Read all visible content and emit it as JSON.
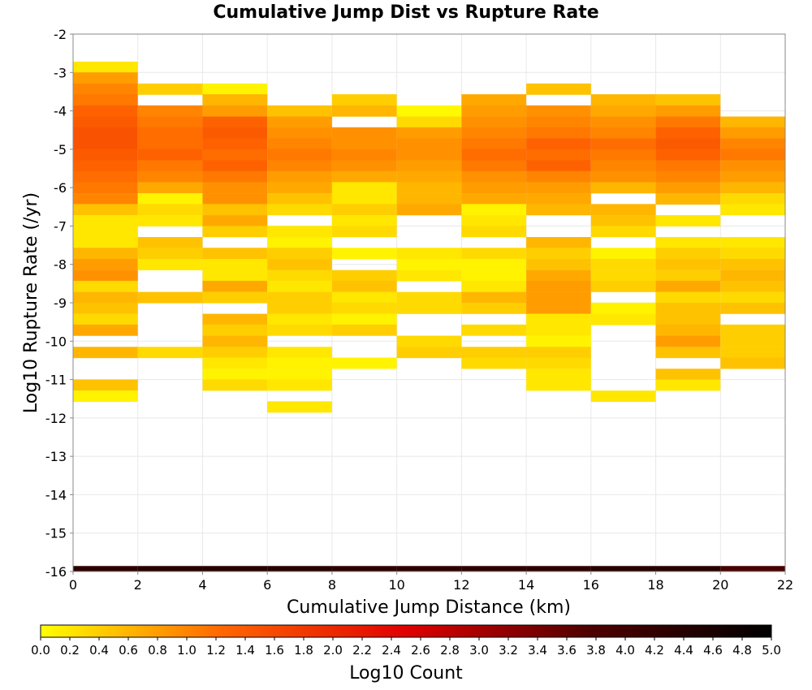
{
  "chart_data": {
    "type": "heatmap",
    "title": "Cumulative Jump Dist vs Rupture Rate",
    "xlabel": "Cumulative Jump Distance (km)",
    "ylabel": "Log10 Rupture Rate (/yr)",
    "xlim": [
      0,
      22
    ],
    "ylim": [
      -16,
      -2
    ],
    "x_ticks": [
      "0",
      "2",
      "4",
      "6",
      "8",
      "10",
      "12",
      "14",
      "16",
      "18",
      "20",
      "22"
    ],
    "y_ticks": [
      "-2",
      "-3",
      "-4",
      "-5",
      "-6",
      "-7",
      "-8",
      "-9",
      "-10",
      "-11",
      "-12",
      "-13",
      "-14",
      "-15",
      "-16"
    ],
    "grid": true,
    "x_bin_width": 2,
    "y_bin_height": 0.2857,
    "colorbar": {
      "label": "Log10 Count",
      "min": 0.0,
      "max": 5.0,
      "ticks": [
        "0.0",
        "0.2",
        "0.4",
        "0.6",
        "0.8",
        "1.0",
        "1.2",
        "1.4",
        "1.6",
        "1.8",
        "2.0",
        "2.2",
        "2.4",
        "2.6",
        "2.8",
        "3.0",
        "3.2",
        "3.4",
        "3.6",
        "3.8",
        "4.0",
        "4.2",
        "4.4",
        "4.6",
        "4.8",
        "5.0"
      ],
      "colors": [
        "#ffff00",
        "#ff6600",
        "#e00000",
        "#500000",
        "#000000"
      ]
    },
    "columns": [
      {
        "x": 1,
        "cells": [
          [
            -2.86,
            0.2
          ],
          [
            -3.14,
            0.8
          ],
          [
            -3.43,
            1.0
          ],
          [
            -3.71,
            1.1
          ],
          [
            -4.0,
            1.3
          ],
          [
            -4.29,
            1.4
          ],
          [
            -4.57,
            1.5
          ],
          [
            -4.86,
            1.5
          ],
          [
            -5.14,
            1.4
          ],
          [
            -5.43,
            1.3
          ],
          [
            -5.71,
            1.2
          ],
          [
            -6.0,
            1.1
          ],
          [
            -6.29,
            1.0
          ],
          [
            -6.57,
            0.5
          ],
          [
            -6.86,
            0.2
          ],
          [
            -7.14,
            0.2
          ],
          [
            -7.43,
            0.2
          ],
          [
            -7.71,
            0.6
          ],
          [
            -8.0,
            0.8
          ],
          [
            -8.29,
            0.9
          ],
          [
            -8.57,
            0.3
          ],
          [
            -8.86,
            0.6
          ],
          [
            -9.14,
            0.5
          ],
          [
            -9.43,
            0.3
          ],
          [
            -9.71,
            0.7
          ],
          [
            -10.29,
            0.6
          ],
          [
            -11.14,
            0.5
          ],
          [
            -11.43,
            0.1
          ]
        ]
      },
      {
        "x": 3,
        "cells": [
          [
            -3.43,
            0.4
          ],
          [
            -4.0,
            1.0
          ],
          [
            -4.29,
            1.1
          ],
          [
            -4.57,
            1.2
          ],
          [
            -4.86,
            1.2
          ],
          [
            -5.14,
            1.3
          ],
          [
            -5.43,
            1.1
          ],
          [
            -5.71,
            1.0
          ],
          [
            -6.0,
            0.7
          ],
          [
            -6.29,
            0.1
          ],
          [
            -6.57,
            0.3
          ],
          [
            -6.86,
            0.2
          ],
          [
            -7.43,
            0.5
          ],
          [
            -7.71,
            0.4
          ],
          [
            -8.0,
            0.2
          ],
          [
            -8.86,
            0.5
          ],
          [
            -10.29,
            0.3
          ]
        ]
      },
      {
        "x": 5,
        "cells": [
          [
            -3.43,
            0.1
          ],
          [
            -3.71,
            0.6
          ],
          [
            -4.0,
            0.8
          ],
          [
            -4.29,
            1.3
          ],
          [
            -4.57,
            1.4
          ],
          [
            -4.86,
            1.3
          ],
          [
            -5.14,
            1.2
          ],
          [
            -5.43,
            1.3
          ],
          [
            -5.71,
            1.1
          ],
          [
            -6.0,
            0.9
          ],
          [
            -6.29,
            0.9
          ],
          [
            -6.57,
            0.5
          ],
          [
            -6.86,
            0.7
          ],
          [
            -7.14,
            0.4
          ],
          [
            -7.71,
            0.5
          ],
          [
            -8.0,
            0.2
          ],
          [
            -8.29,
            0.2
          ],
          [
            -8.57,
            0.7
          ],
          [
            -8.86,
            0.4
          ],
          [
            -9.43,
            0.6
          ],
          [
            -9.71,
            0.4
          ],
          [
            -10.0,
            0.6
          ],
          [
            -10.29,
            0.4
          ],
          [
            -10.57,
            0.2
          ],
          [
            -10.86,
            0.1
          ],
          [
            -11.14,
            0.3
          ]
        ]
      },
      {
        "x": 7,
        "cells": [
          [
            -4.0,
            0.5
          ],
          [
            -4.29,
            0.8
          ],
          [
            -4.57,
            0.9
          ],
          [
            -4.86,
            1.0
          ],
          [
            -5.14,
            1.1
          ],
          [
            -5.43,
            1.0
          ],
          [
            -5.71,
            0.8
          ],
          [
            -6.0,
            0.7
          ],
          [
            -6.29,
            0.5
          ],
          [
            -6.57,
            0.3
          ],
          [
            -7.14,
            0.2
          ],
          [
            -7.43,
            0.1
          ],
          [
            -7.71,
            0.4
          ],
          [
            -8.0,
            0.5
          ],
          [
            -8.29,
            0.3
          ],
          [
            -8.57,
            0.2
          ],
          [
            -8.86,
            0.4
          ],
          [
            -9.14,
            0.4
          ],
          [
            -9.43,
            0.2
          ],
          [
            -9.71,
            0.3
          ],
          [
            -10.29,
            0.2
          ],
          [
            -10.57,
            0.1
          ],
          [
            -10.86,
            0.1
          ],
          [
            -11.14,
            0.2
          ],
          [
            -11.71,
            0.2
          ]
        ]
      },
      {
        "x": 9,
        "cells": [
          [
            -3.71,
            0.4
          ],
          [
            -4.0,
            0.6
          ],
          [
            -4.57,
            0.9
          ],
          [
            -4.86,
            0.9
          ],
          [
            -5.14,
            1.0
          ],
          [
            -5.43,
            0.9
          ],
          [
            -5.71,
            0.7
          ],
          [
            -6.0,
            0.2
          ],
          [
            -6.29,
            0.2
          ],
          [
            -6.57,
            0.4
          ],
          [
            -6.86,
            0.2
          ],
          [
            -7.14,
            0.3
          ],
          [
            -7.71,
            0.1
          ],
          [
            -8.29,
            0.4
          ],
          [
            -8.57,
            0.5
          ],
          [
            -8.86,
            0.2
          ],
          [
            -9.14,
            0.3
          ],
          [
            -9.43,
            0.1
          ],
          [
            -9.71,
            0.4
          ],
          [
            -10.57,
            0.1
          ]
        ]
      },
      {
        "x": 11,
        "cells": [
          [
            -4.0,
            0.05
          ],
          [
            -4.29,
            0.3
          ],
          [
            -4.57,
            0.8
          ],
          [
            -4.86,
            0.9
          ],
          [
            -5.14,
            0.9
          ],
          [
            -5.43,
            0.8
          ],
          [
            -5.71,
            0.7
          ],
          [
            -6.0,
            0.6
          ],
          [
            -6.29,
            0.6
          ],
          [
            -6.57,
            0.7
          ],
          [
            -7.71,
            0.2
          ],
          [
            -8.0,
            0.1
          ],
          [
            -8.29,
            0.2
          ],
          [
            -8.86,
            0.3
          ],
          [
            -9.14,
            0.3
          ],
          [
            -10.0,
            0.3
          ],
          [
            -10.29,
            0.4
          ]
        ]
      },
      {
        "x": 13,
        "cells": [
          [
            -3.71,
            0.7
          ],
          [
            -4.0,
            0.8
          ],
          [
            -4.29,
            0.9
          ],
          [
            -4.57,
            1.0
          ],
          [
            -4.86,
            1.1
          ],
          [
            -5.14,
            1.2
          ],
          [
            -5.43,
            1.1
          ],
          [
            -5.71,
            0.9
          ],
          [
            -6.0,
            0.8
          ],
          [
            -6.29,
            0.7
          ],
          [
            -6.57,
            0.1
          ],
          [
            -6.86,
            0.2
          ],
          [
            -7.14,
            0.3
          ],
          [
            -7.71,
            0.3
          ],
          [
            -8.0,
            0.1
          ],
          [
            -8.29,
            0.1
          ],
          [
            -8.57,
            0.2
          ],
          [
            -8.86,
            0.6
          ],
          [
            -9.14,
            0.4
          ],
          [
            -9.71,
            0.3
          ],
          [
            -10.29,
            0.4
          ],
          [
            -10.57,
            0.3
          ]
        ]
      },
      {
        "x": 15,
        "cells": [
          [
            -3.43,
            0.5
          ],
          [
            -4.0,
            0.9
          ],
          [
            -4.29,
            1.0
          ],
          [
            -4.57,
            1.1
          ],
          [
            -4.86,
            1.3
          ],
          [
            -5.14,
            1.2
          ],
          [
            -5.43,
            1.3
          ],
          [
            -5.71,
            1.0
          ],
          [
            -6.0,
            0.8
          ],
          [
            -6.29,
            0.7
          ],
          [
            -6.57,
            0.6
          ],
          [
            -7.43,
            0.6
          ],
          [
            -7.71,
            0.4
          ],
          [
            -8.0,
            0.5
          ],
          [
            -8.29,
            0.7
          ],
          [
            -8.57,
            0.8
          ],
          [
            -8.86,
            0.8
          ],
          [
            -9.14,
            0.8
          ],
          [
            -9.43,
            0.2
          ],
          [
            -9.71,
            0.2
          ],
          [
            -10.0,
            0.1
          ],
          [
            -10.29,
            0.4
          ],
          [
            -10.57,
            0.3
          ],
          [
            -10.86,
            0.2
          ],
          [
            -11.14,
            0.2
          ]
        ]
      },
      {
        "x": 17,
        "cells": [
          [
            -3.71,
            0.6
          ],
          [
            -4.0,
            0.7
          ],
          [
            -4.29,
            0.9
          ],
          [
            -4.57,
            1.0
          ],
          [
            -4.86,
            1.2
          ],
          [
            -5.14,
            1.1
          ],
          [
            -5.43,
            1.0
          ],
          [
            -5.71,
            0.9
          ],
          [
            -6.0,
            0.6
          ],
          [
            -6.57,
            0.6
          ],
          [
            -6.86,
            0.5
          ],
          [
            -7.14,
            0.3
          ],
          [
            -7.71,
            0.1
          ],
          [
            -8.0,
            0.3
          ],
          [
            -8.29,
            0.3
          ],
          [
            -8.57,
            0.4
          ],
          [
            -9.14,
            0.1
          ],
          [
            -9.43,
            0.2
          ],
          [
            -11.43,
            0.2
          ]
        ]
      },
      {
        "x": 19,
        "cells": [
          [
            -3.71,
            0.5
          ],
          [
            -4.0,
            0.8
          ],
          [
            -4.29,
            1.1
          ],
          [
            -4.57,
            1.3
          ],
          [
            -4.86,
            1.4
          ],
          [
            -5.14,
            1.3
          ],
          [
            -5.43,
            1.1
          ],
          [
            -5.71,
            1.0
          ],
          [
            -6.0,
            0.8
          ],
          [
            -6.29,
            0.6
          ],
          [
            -6.86,
            0.2
          ],
          [
            -7.43,
            0.2
          ],
          [
            -7.71,
            0.4
          ],
          [
            -8.0,
            0.5
          ],
          [
            -8.29,
            0.4
          ],
          [
            -8.57,
            0.7
          ],
          [
            -8.86,
            0.3
          ],
          [
            -9.14,
            0.5
          ],
          [
            -9.43,
            0.5
          ],
          [
            -9.71,
            0.6
          ],
          [
            -10.0,
            0.8
          ],
          [
            -10.29,
            0.5
          ],
          [
            -10.86,
            0.5
          ],
          [
            -11.14,
            0.2
          ]
        ]
      },
      {
        "x": 21,
        "cells": [
          [
            -4.29,
            0.6
          ],
          [
            -4.57,
            0.8
          ],
          [
            -4.86,
            1.0
          ],
          [
            -5.14,
            1.1
          ],
          [
            -5.43,
            0.9
          ],
          [
            -5.71,
            0.8
          ],
          [
            -6.0,
            0.6
          ],
          [
            -6.29,
            0.3
          ],
          [
            -6.57,
            0.2
          ],
          [
            -7.43,
            0.2
          ],
          [
            -7.71,
            0.3
          ],
          [
            -8.0,
            0.5
          ],
          [
            -8.29,
            0.6
          ],
          [
            -8.57,
            0.5
          ],
          [
            -8.86,
            0.3
          ],
          [
            -9.14,
            0.5
          ],
          [
            -9.71,
            0.4
          ],
          [
            -10.0,
            0.4
          ],
          [
            -10.29,
            0.4
          ],
          [
            -10.57,
            0.5
          ]
        ]
      }
    ],
    "bottom_row": {
      "y": -16,
      "values": [
        4.3,
        4.4,
        4.4,
        4.4,
        4.3,
        4.3,
        4.3,
        4.3,
        4.4,
        4.4,
        3.9
      ]
    }
  }
}
